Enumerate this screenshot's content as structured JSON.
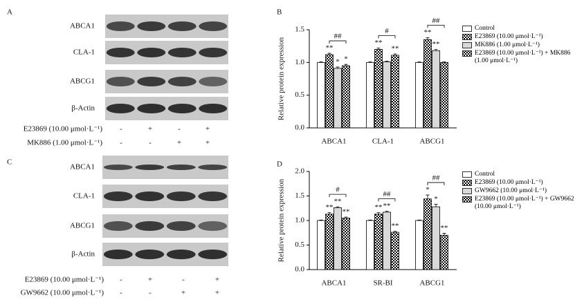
{
  "blots": [
    {
      "panel": "A",
      "proteins": [
        "ABCA1",
        "CLA-1",
        "ABCG1",
        "β-Actin"
      ],
      "treatments": [
        {
          "label": "E23869 (10.00 μmol·L⁻¹)",
          "signs": [
            "-",
            "+",
            "-",
            "+"
          ]
        },
        {
          "label": "MK886 (1.00 μmol·L⁻¹)",
          "signs": [
            "-",
            "-",
            "+",
            "+"
          ]
        }
      ]
    },
    {
      "panel": "C",
      "proteins": [
        "ABCA1",
        "CLA-1",
        "ABCG1",
        "β-Actin"
      ],
      "treatments": [
        {
          "label": "E23869 (10.00 μmol·L⁻¹)",
          "signs": [
            "-",
            "+",
            "-",
            "+"
          ]
        },
        {
          "label": "GW9662 (10.00 μmol·L⁻¹)",
          "signs": [
            "-",
            "-",
            "+",
            "+"
          ]
        }
      ]
    }
  ],
  "chart_data": [
    {
      "type": "bar",
      "panel": "B",
      "y_label": "Relative protein expression",
      "categories": [
        "ABCA1",
        "CLA-1",
        "ABCG1"
      ],
      "series": [
        {
          "name": "Control",
          "color": "#ffffff",
          "values": [
            1.0,
            1.0,
            1.0
          ],
          "errors": [
            0.01,
            0.01,
            0.01
          ],
          "annotations": [
            null,
            null,
            null
          ]
        },
        {
          "name": "E23869 (10.00 μmol·L⁻¹)",
          "color": "#000000",
          "pattern": "checker",
          "values": [
            1.12,
            1.2,
            1.35
          ],
          "errors": [
            0.02,
            0.02,
            0.03
          ],
          "annotations": [
            "**",
            "**",
            "**"
          ]
        },
        {
          "name": "MK886 (1.00 μmol·L⁻¹)",
          "color": "#d9d9d9",
          "values": [
            0.91,
            1.01,
            1.18
          ],
          "errors": [
            0.02,
            0.01,
            0.02
          ],
          "annotations": [
            "*",
            null,
            "**"
          ]
        },
        {
          "name": "E23869 (10.00 μmol·L⁻¹) + MK886 (1.00 μmol·L⁻¹)",
          "color": "#000000",
          "pattern": "checker",
          "values": [
            0.95,
            1.11,
            1.0
          ],
          "errors": [
            0.02,
            0.02,
            0.01
          ],
          "annotations": [
            "*",
            "**",
            null
          ]
        }
      ],
      "brackets": [
        "##",
        "#",
        "##"
      ],
      "ylim": [
        0,
        1.5
      ],
      "yticks": [
        {
          "value": 0,
          "label": "0.0"
        },
        {
          "value": 0.5,
          "label": "0.5"
        },
        {
          "value": 1,
          "label": "1.0"
        },
        {
          "value": 1.5,
          "label": "1.5"
        }
      ]
    },
    {
      "type": "bar",
      "panel": "D",
      "y_label": "Relative protein expression",
      "categories": [
        "ABCA1",
        "SR-BI",
        "ABCG1"
      ],
      "series": [
        {
          "name": "Control",
          "color": "#ffffff",
          "values": [
            1.0,
            1.0,
            1.0
          ],
          "errors": [
            0.01,
            0.01,
            0.01
          ],
          "annotations": [
            null,
            null,
            null
          ]
        },
        {
          "name": "E23869 (10.00 μmol·L⁻¹)",
          "color": "#000000",
          "pattern": "checker",
          "values": [
            1.13,
            1.13,
            1.44
          ],
          "errors": [
            0.03,
            0.03,
            0.08
          ],
          "annotations": [
            "**",
            "**",
            "*"
          ]
        },
        {
          "name": "GW9662 (10.00 μmol·L⁻¹)",
          "color": "#d9d9d9",
          "values": [
            1.26,
            1.17,
            1.28
          ],
          "errors": [
            0.02,
            0.02,
            0.05
          ],
          "annotations": [
            "**",
            "**",
            "*"
          ]
        },
        {
          "name": "E23869 (10.00 μmol·L⁻¹) + GW9662 (10.00 μmol·L⁻¹)",
          "color": "#000000",
          "pattern": "checker",
          "values": [
            1.05,
            0.76,
            0.7
          ],
          "errors": [
            0.02,
            0.02,
            0.04
          ],
          "annotations": [
            "**",
            "**",
            "**"
          ]
        }
      ],
      "brackets": [
        "#",
        "##",
        "##"
      ],
      "ylim": [
        0,
        2
      ],
      "yticks": [
        {
          "value": 0,
          "label": "0.0"
        },
        {
          "value": 0.5,
          "label": "0.5"
        },
        {
          "value": 1,
          "label": "1.0"
        },
        {
          "value": 1.5,
          "label": "1.5"
        },
        {
          "value": 2,
          "label": "2.0"
        }
      ]
    }
  ]
}
